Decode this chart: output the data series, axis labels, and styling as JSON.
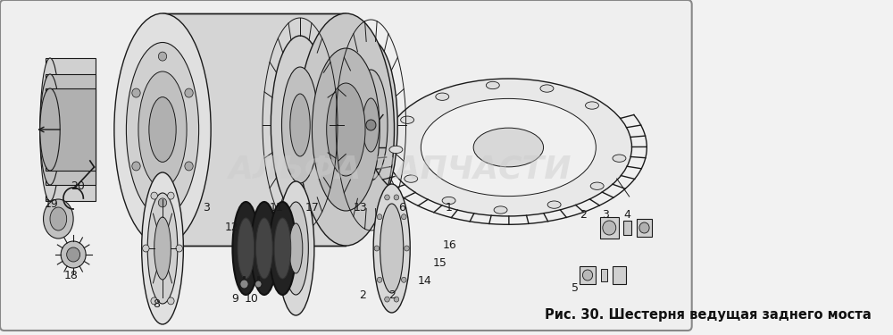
{
  "bg_color": "#f2f2f2",
  "fig_bg": "#f2f2f2",
  "caption": "Рис. 30. Шестерня ведущая заднего моста",
  "caption_fontsize": 10.5,
  "caption_bold": true,
  "watermark": "АЛЬФА ЗАПЧАСТИ",
  "watermark_color": "#cccccc",
  "watermark_alpha": 0.45,
  "watermark_fontsize": 26,
  "lc": "#1a1a1a",
  "lw_main": 1.0,
  "lw_thin": 0.6,
  "lw_thick": 1.5
}
